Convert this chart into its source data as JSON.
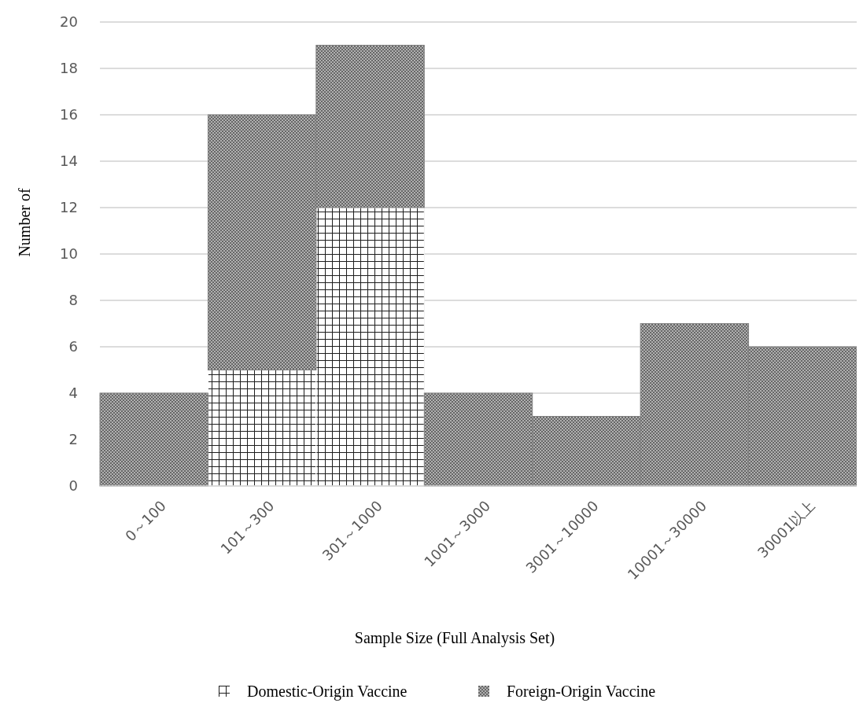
{
  "chart_data": {
    "type": "bar",
    "stacked": true,
    "xlabel": "Sample Size (Full Analysis Set)",
    "ylabel": "Number of",
    "categories": [
      "0～100",
      "101～300",
      "301～1000",
      "1001～3000",
      "3001～10000",
      "10001～30000",
      "30001以上"
    ],
    "series": [
      {
        "name": "Domestic-Origin Vaccine",
        "color": "#ffffff",
        "values": [
          0,
          5,
          12,
          0,
          0,
          0,
          0
        ]
      },
      {
        "name": "Foreign-Origin Vaccine",
        "color": "#808080",
        "values": [
          4,
          11,
          7,
          4,
          3,
          7,
          6
        ]
      }
    ],
    "ylim": [
      0,
      20
    ],
    "yticks": [
      0,
      2,
      4,
      6,
      8,
      10,
      12,
      14,
      16,
      18,
      20
    ],
    "grid": "y",
    "legend": "bottom"
  }
}
